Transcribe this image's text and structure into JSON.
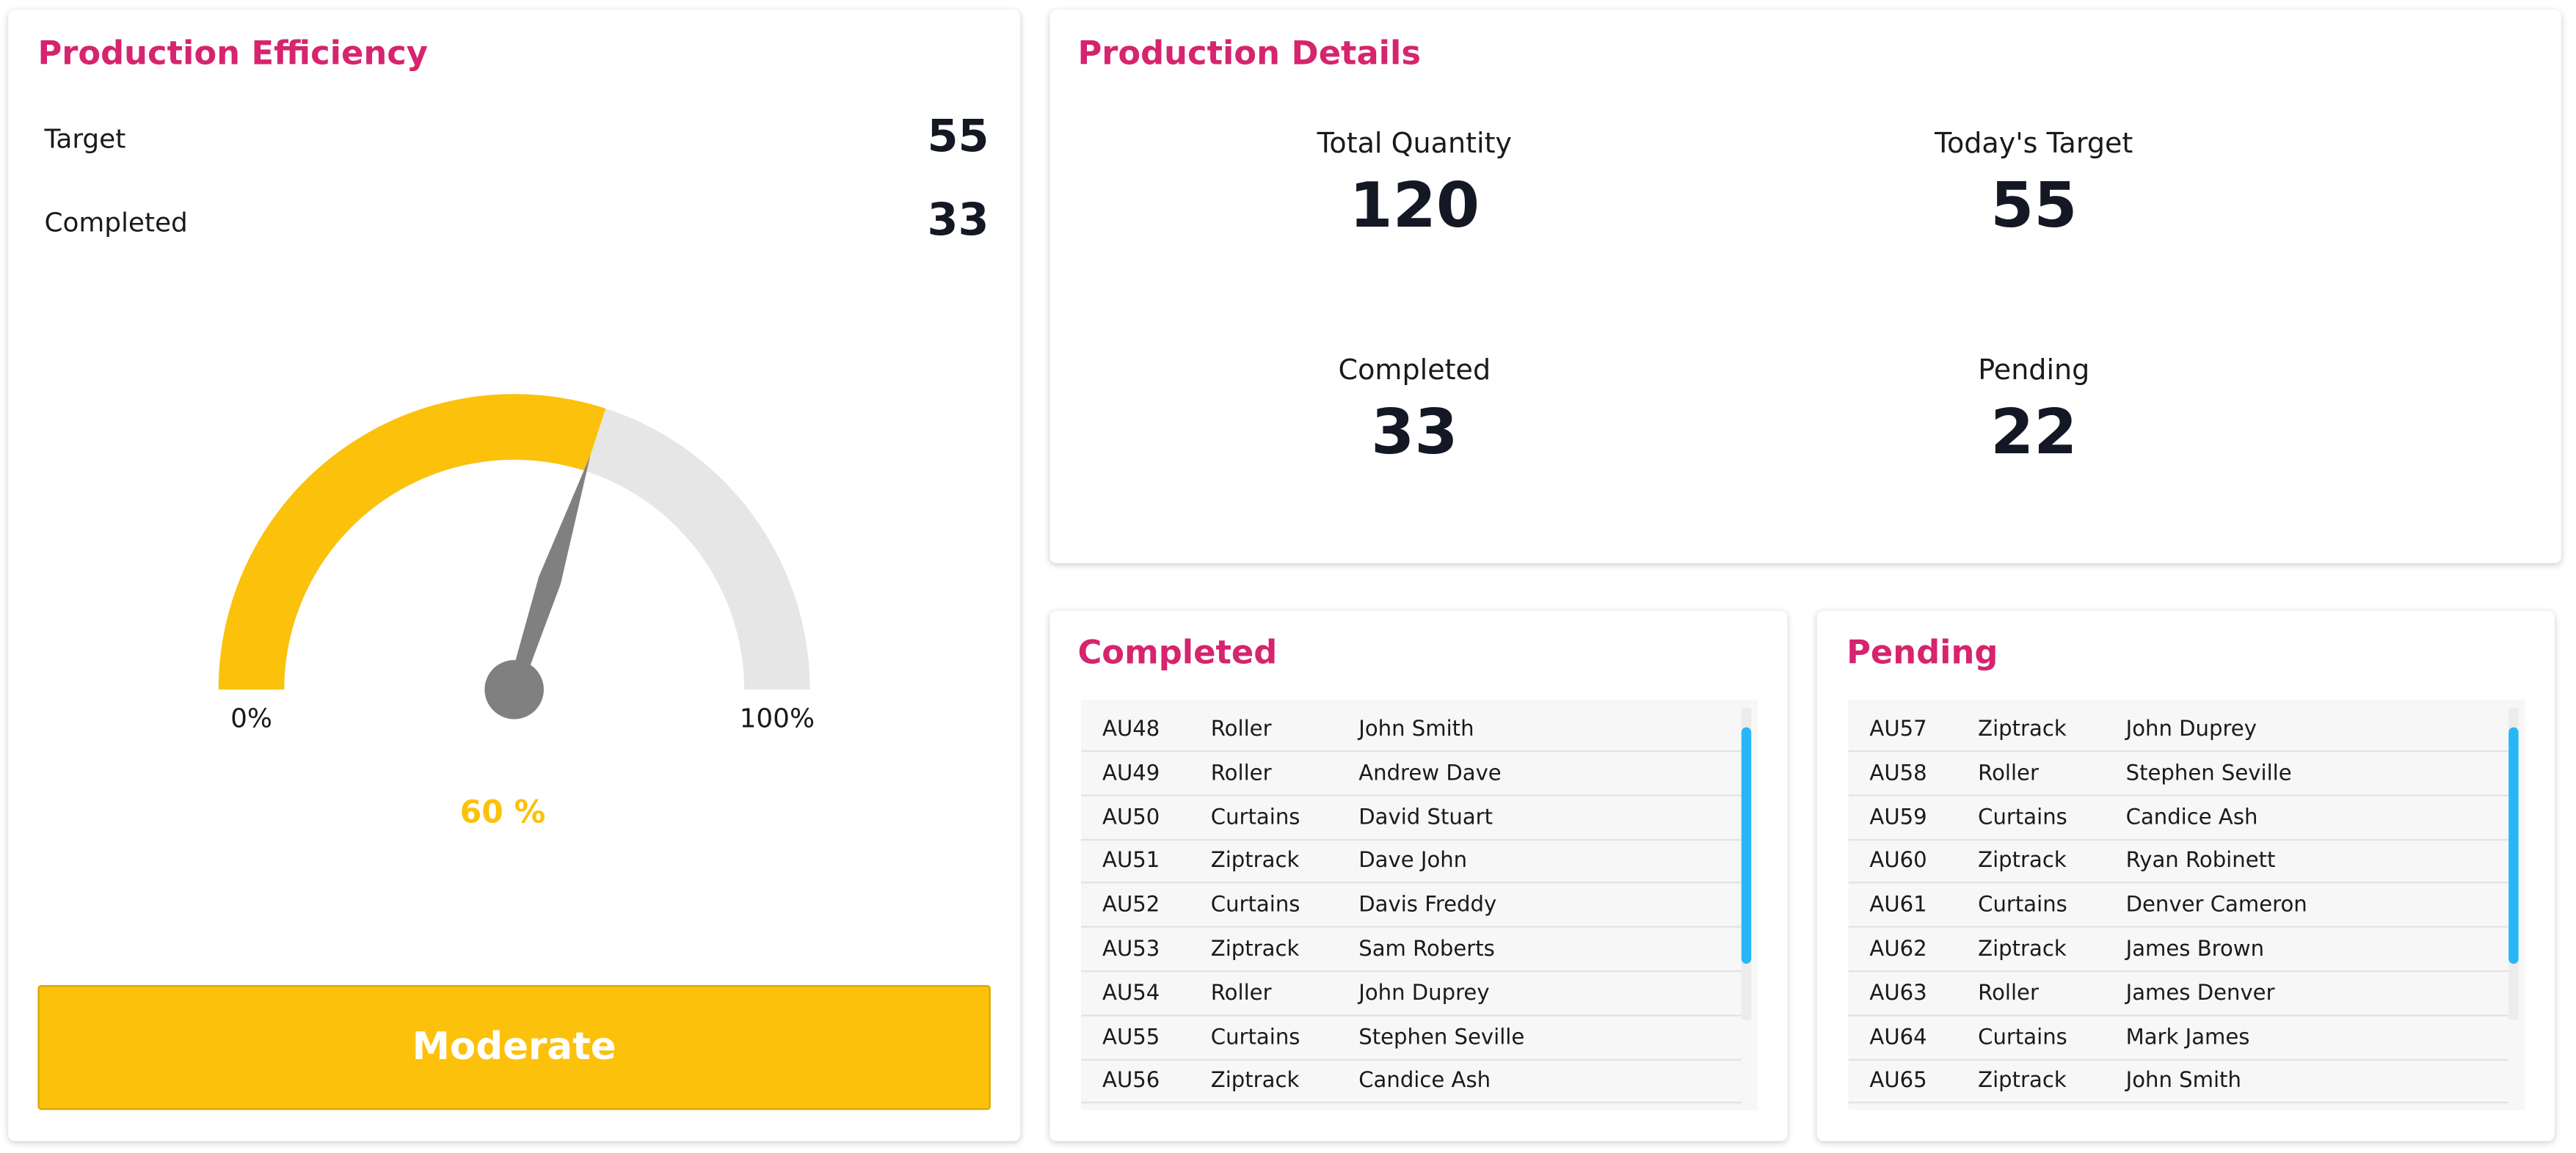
{
  "efficiency": {
    "title": "Production Efficiency",
    "rows": [
      {
        "label": "Target",
        "value": 55
      },
      {
        "label": "Completed",
        "value": 33
      }
    ],
    "gauge": {
      "value": 60,
      "value_label": "60 %",
      "ticks": [
        {
          "value": 0,
          "label": "0%"
        },
        {
          "value": 100,
          "label": "100%"
        }
      ]
    },
    "status": "Moderate"
  },
  "details": {
    "title": "Production Details",
    "stats": [
      {
        "label": "Total Quantity",
        "value": 120
      },
      {
        "label": "Today's Target",
        "value": 55
      },
      {
        "label": "Completed",
        "value": 33
      },
      {
        "label": "Pending",
        "value": 22
      }
    ]
  },
  "completed": {
    "title": "Completed",
    "rows": [
      [
        "AU48",
        "Roller",
        "John Smith"
      ],
      [
        "AU49",
        "Roller",
        "Andrew Dave"
      ],
      [
        "AU50",
        "Curtains",
        "David Stuart"
      ],
      [
        "AU51",
        "Ziptrack",
        "Dave John"
      ],
      [
        "AU52",
        "Curtains",
        "Davis Freddy"
      ],
      [
        "AU53",
        "Ziptrack",
        "Sam Roberts"
      ],
      [
        "AU54",
        "Roller",
        "John Duprey"
      ],
      [
        "AU55",
        "Curtains",
        "Stephen Seville"
      ],
      [
        "AU56",
        "Ziptrack",
        "Candice Ash"
      ]
    ]
  },
  "pending": {
    "title": "Pending",
    "rows": [
      [
        "AU57",
        "Ziptrack",
        "John Duprey"
      ],
      [
        "AU58",
        "Roller",
        "Stephen Seville"
      ],
      [
        "AU59",
        "Curtains",
        "Candice Ash"
      ],
      [
        "AU60",
        "Ziptrack",
        "Ryan Robinett"
      ],
      [
        "AU61",
        "Curtains",
        "Denver Cameron"
      ],
      [
        "AU62",
        "Ziptrack",
        "James Brown"
      ],
      [
        "AU63",
        "Roller",
        "James Denver"
      ],
      [
        "AU64",
        "Curtains",
        "Mark James"
      ],
      [
        "AU65",
        "Ziptrack",
        "John Smith"
      ]
    ]
  }
}
